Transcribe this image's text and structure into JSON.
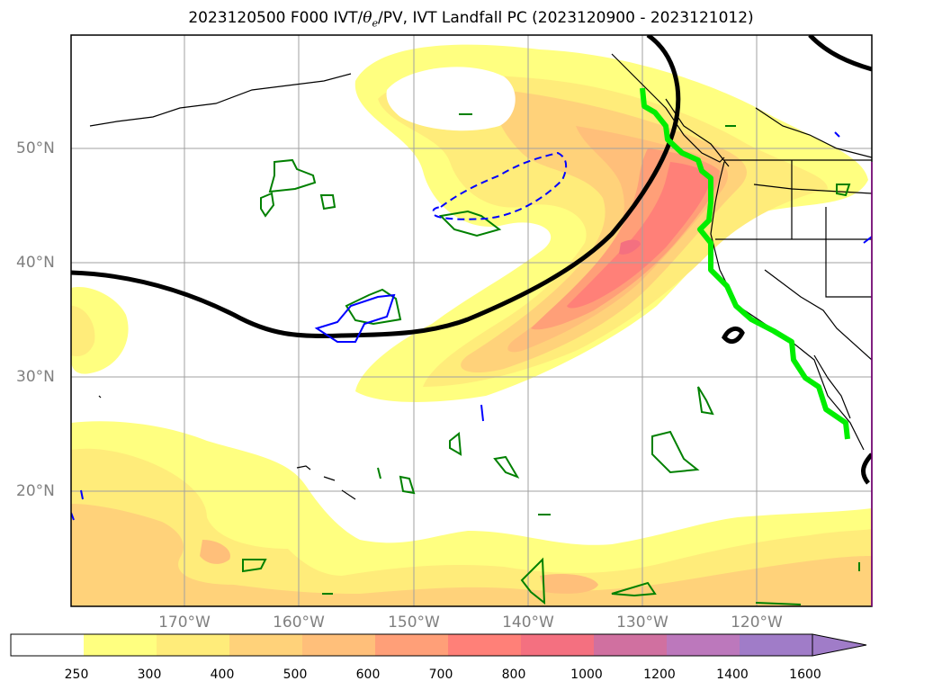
{
  "title_prefix": "2023120500 F000 IVT/",
  "title_theta": "θ",
  "title_sub": "e",
  "title_suffix": "/PV, IVT Landfall PC (2023120900 - 2023121012)",
  "lat_labels": [
    "50°N",
    "40°N",
    "30°N",
    "20°N"
  ],
  "lon_labels": [
    "170°W",
    "160°W",
    "150°W",
    "140°W",
    "130°W",
    "120°W"
  ],
  "colorbar": {
    "levels": [
      "250",
      "300",
      "400",
      "500",
      "600",
      "700",
      "800",
      "1000",
      "1200",
      "1400",
      "1600"
    ],
    "colors": [
      "#ffffff",
      "#ffff80",
      "#ffec7a",
      "#ffd27a",
      "#ffbf7a",
      "#ff9f78",
      "#ff8078",
      "#f47080",
      "#d070a0",
      "#bc78bc",
      "#a07cc8"
    ]
  },
  "colors": {
    "theta_e_contour": "#000000",
    "pv_positive": "#008000",
    "pv_negative": "#0000ff",
    "landfall_path": "#00ee00"
  }
}
